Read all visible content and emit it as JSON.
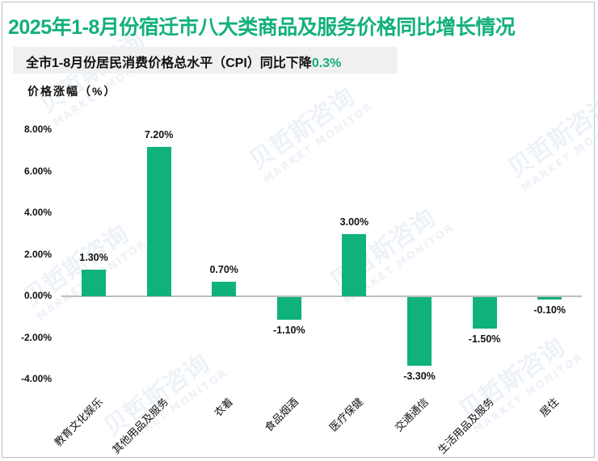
{
  "title": "2025年1-8月份宿迁市八大类商品及服务价格同比增长情况",
  "subtitle": {
    "prefix": "全市1-8月份居民消费价格总水平（CPI）同比下降",
    "highlight": "0.3%"
  },
  "watermark": {
    "cn": "贝哲斯咨询",
    "en": "MARKET MONITOR"
  },
  "colors": {
    "accent": "#13b07c",
    "bar": "#0fb27b",
    "axis": "#bfbfbf",
    "subtitle_bg": "#f0f0f0"
  },
  "chart_data": {
    "type": "bar",
    "title": "2025年1-8月份宿迁市八大类商品及服务价格同比增长情况",
    "subtitle": "全市1-8月份居民消费价格总水平（CPI）同比下降0.3%",
    "xlabel": "",
    "ylabel": "价格涨幅（%）",
    "ylim": [
      -4,
      8
    ],
    "yticks": [
      "8.00%",
      "6.00%",
      "4.00%",
      "2.00%",
      "0.00%",
      "-2.00%",
      "-4.00%"
    ],
    "grid": false,
    "legend": null,
    "categories": [
      "教育文化娱乐",
      "其他用品及服务",
      "衣着",
      "食品烟酒",
      "医疗保健",
      "交通通信",
      "生活用品及服务",
      "居住"
    ],
    "values": [
      1.3,
      7.2,
      0.7,
      -1.1,
      3.0,
      -3.3,
      -1.5,
      -0.1
    ],
    "labels": [
      "1.30%",
      "7.20%",
      "0.70%",
      "-1.10%",
      "3.00%",
      "-3.30%",
      "-1.50%",
      "-0.10%"
    ]
  }
}
